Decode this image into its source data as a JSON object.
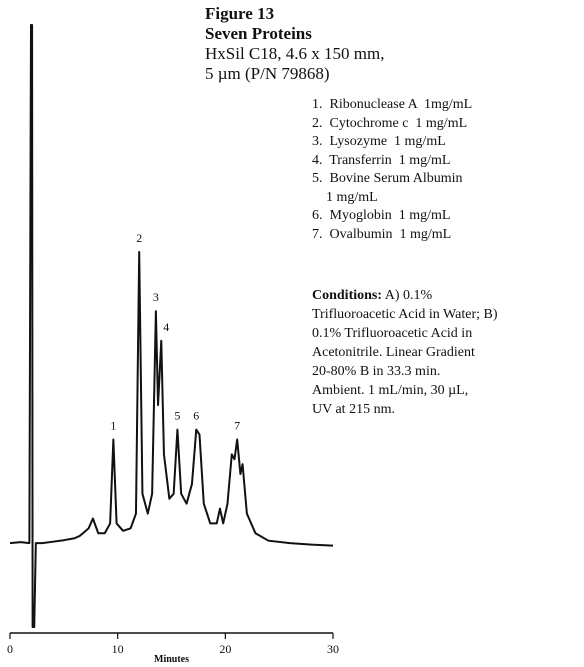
{
  "chart_data": {
    "type": "line",
    "title": "Figure 13",
    "subtitle": [
      "Seven Proteins",
      "HxSil C18, 4.6 x 150 mm,",
      "5 µm (P/N 79868)"
    ],
    "x_label": "Minutes",
    "xlim": [
      0,
      30
    ],
    "xticks": [
      0,
      10,
      20,
      30
    ],
    "ylim": [
      -18,
      106
    ],
    "series": [
      {
        "color": "#111111",
        "x": [
          0,
          1.0,
          1.8,
          1.95,
          2.05,
          2.1,
          2.25,
          2.4,
          3,
          4,
          5,
          6,
          6.5,
          7.3,
          7.7,
          8.2,
          8.8,
          9.3,
          9.6,
          9.9,
          10.5,
          11.2,
          11.7,
          12.0,
          12.3,
          12.8,
          13.2,
          13.55,
          13.75,
          14.05,
          14.3,
          14.8,
          15.2,
          15.55,
          15.9,
          16.4,
          16.9,
          17.3,
          17.6,
          18.0,
          18.6,
          19.2,
          19.5,
          19.8,
          20.2,
          20.6,
          20.85,
          21.1,
          21.4,
          21.6,
          22.0,
          22.8,
          24,
          26,
          28,
          30
        ],
        "values": [
          0,
          0.2,
          0,
          105,
          105,
          -17,
          -17,
          0,
          0,
          0.3,
          0.6,
          1,
          1.5,
          3,
          5,
          2,
          2,
          4,
          21,
          4,
          2.5,
          3,
          6,
          59,
          10,
          6,
          10,
          47,
          28,
          41,
          18,
          9,
          10,
          23,
          10,
          8,
          12,
          23,
          22,
          8,
          4,
          4,
          7,
          4,
          8,
          18,
          17,
          21,
          14,
          16,
          6,
          2,
          0.5,
          0,
          -0.3,
          -0.5
        ]
      }
    ],
    "annotations": [
      {
        "text": "1",
        "x": 9.6
      },
      {
        "text": "2",
        "x": 12.0
      },
      {
        "text": "3",
        "x": 13.55
      },
      {
        "text": "4",
        "x": 14.05
      },
      {
        "text": "5",
        "x": 15.55
      },
      {
        "text": "6",
        "x": 17.3
      },
      {
        "text": "7",
        "x": 21.1
      }
    ],
    "notes": [
      "1.  Ribonuclease A  1mg/mL",
      "2.  Cytochrome c  1 mg/mL",
      "3.  Lysozyme  1 mg/mL",
      "4.  Transferrin  1 mg/mL",
      "5.  Bovine Serum Albumin",
      "    1 mg/mL",
      "6.  Myoglobin  1 mg/mL",
      "7.  Ovalbumin  1 mg/mL"
    ],
    "conditions_label": "Conditions:",
    "conditions": [
      " A) 0.1%",
      "Trifluoroacetic Acid in Water; B)",
      "0.1% Trifluoroacetic Acid in",
      "Acetonitrile. Linear Gradient",
      "20-80% B in 33.3 min.",
      "Ambient. 1 mL/min, 30 µL,",
      "UV at 215 nm."
    ]
  }
}
